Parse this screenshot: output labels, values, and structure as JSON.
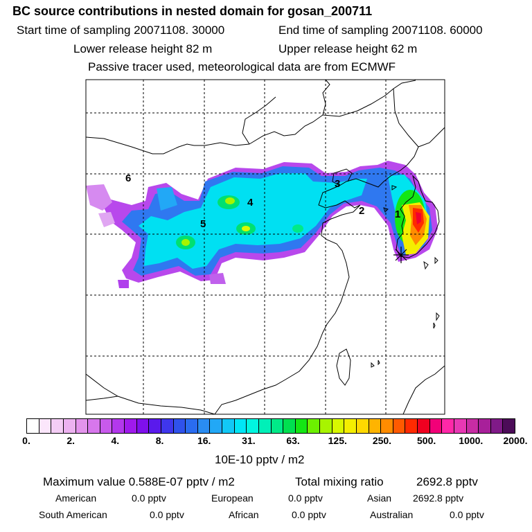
{
  "header": {
    "title": "BC  source contributions in nested domain for gosan_200711",
    "start_label": "Start time of sampling 20071108. 30000",
    "end_label": "End time of sampling 20071108. 60000",
    "lower_label": "Lower release height   82 m",
    "upper_label": "Upper release height   62 m",
    "tracer_label": "Passive tracer used, meteorological data are from ECMWF"
  },
  "map": {
    "region_labels": [
      "1",
      "2",
      "3",
      "4",
      "5",
      "6"
    ],
    "receptor": "gosan"
  },
  "colorbar": {
    "tick_labels": [
      "0.",
      "2.",
      "4.",
      "8.",
      "16.",
      "31.",
      "63.",
      "125.",
      "250.",
      "500.",
      "1000.",
      "2000."
    ],
    "colors": [
      "#ffffff",
      "#fbe6fb",
      "#f4cdf5",
      "#ecb2f0",
      "#e394ec",
      "#d777ec",
      "#c85aec",
      "#b338ec",
      "#9f1aec",
      "#7f10ec",
      "#5a1aec",
      "#3f36ec",
      "#2f52ec",
      "#2a6cf0",
      "#2a8cf2",
      "#22a8f6",
      "#12c8f6",
      "#00e6f6",
      "#00f6e0",
      "#00f0b8",
      "#00ea88",
      "#00e050",
      "#14e614",
      "#6cf000",
      "#a8f400",
      "#d8f800",
      "#f4ee00",
      "#ffd800",
      "#ffb400",
      "#ff8c00",
      "#ff5a00",
      "#ff2a00",
      "#f00020",
      "#f20078",
      "#ff28a8",
      "#e838b4",
      "#c82ca4",
      "#a8209a",
      "#801a88",
      "#4c0c58"
    ],
    "units": "10E-10 pptv / m2"
  },
  "stats": {
    "max_label": "Maximum value  0.588E-07 pptv / m2",
    "total_label": "Total mixing ratio",
    "total_value": "2692.8 pptv",
    "contributions": [
      {
        "name": "American",
        "value": "0.0 pptv"
      },
      {
        "name": "European",
        "value": "0.0 pptv"
      },
      {
        "name": "Asian",
        "value": "2692.8 pptv"
      },
      {
        "name": "South American",
        "value": "0.0 pptv"
      },
      {
        "name": "African",
        "value": "0.0 pptv"
      },
      {
        "name": "Australian",
        "value": "0.0 pptv"
      }
    ]
  }
}
